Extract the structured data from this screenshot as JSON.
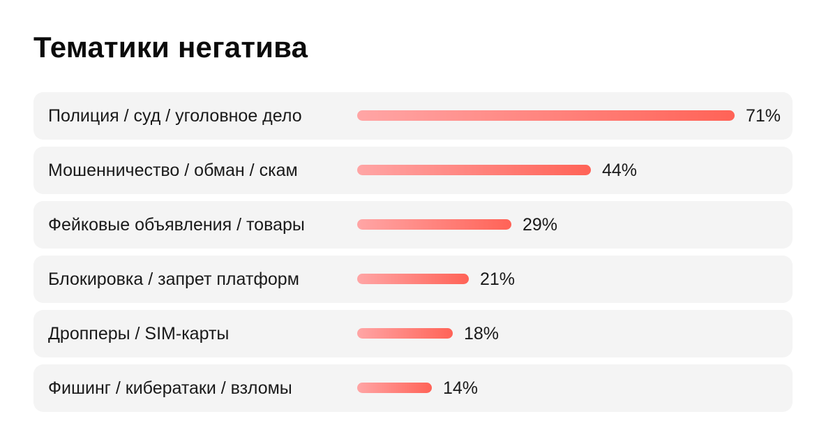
{
  "title": "Тематики негатива",
  "colors": {
    "row_background": "#f4f4f4",
    "bar_gradient_start": "#ffa5a5",
    "bar_gradient_end": "#ff6357",
    "text": "#1a1a1a"
  },
  "chart_data": {
    "type": "bar",
    "orientation": "horizontal",
    "title": "Тематики негатива",
    "categories": [
      "Полиция / суд / уголовное дело",
      "Мошенничество / обман / скам",
      "Фейковые объявления / товары",
      "Блокировка / запрет платформ",
      "Дропперы / SIM-карты",
      "Фишинг / кибератаки / взломы"
    ],
    "values": [
      71,
      44,
      29,
      21,
      18,
      14
    ],
    "value_labels": [
      "71%",
      "44%",
      "29%",
      "21%",
      "18%",
      "14%"
    ],
    "unit": "%",
    "grid": false
  }
}
